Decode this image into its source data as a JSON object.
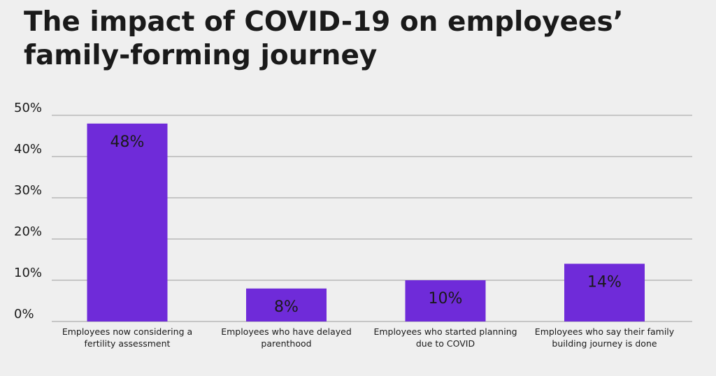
{
  "chart_data": {
    "type": "bar",
    "title": "The impact of COVID-19 on employees’ family-forming journey",
    "categories": [
      "Employees now considering a fertility assessment",
      "Employees who have delayed parenthood",
      "Employees who started planning due to COVID",
      "Employees who say their family building journey is done"
    ],
    "category_lines": [
      [
        "Employees now considering a",
        "fertility assessment"
      ],
      [
        "Employees who have delayed",
        "parenthood"
      ],
      [
        "Employees who started planning",
        "due to COVID"
      ],
      [
        "Employees who say their family",
        "building journey is done"
      ]
    ],
    "values": [
      48,
      8,
      10,
      14
    ],
    "value_labels": [
      "48%",
      "8%",
      "10%",
      "14%"
    ],
    "yticks": [
      0,
      10,
      20,
      30,
      40,
      50
    ],
    "ytick_labels": [
      "0%",
      "10%",
      "20%",
      "30%",
      "40%",
      "50%"
    ],
    "ylim": [
      0,
      50
    ],
    "xlabel": "",
    "ylabel": "",
    "grid": true,
    "bar_color": "#6f2bd9",
    "grid_color": "#9e9e9e"
  }
}
